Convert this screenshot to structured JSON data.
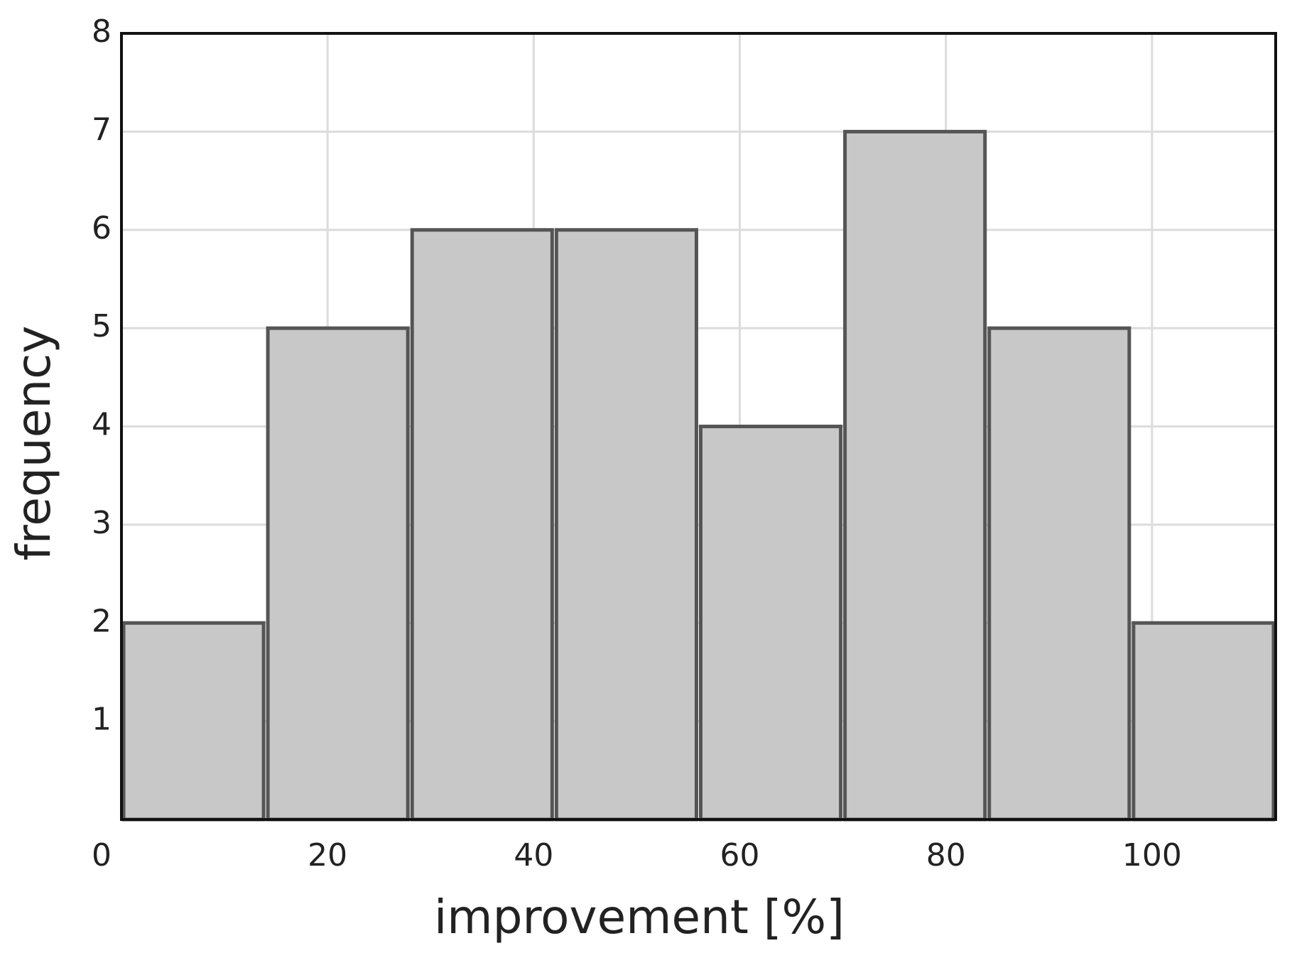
{
  "chart_data": {
    "type": "histogram",
    "x_label": "improvement [%]",
    "y_label": "frequency",
    "bins": [
      0,
      14,
      28,
      42,
      56,
      70,
      84,
      98,
      112
    ],
    "values": [
      2,
      5,
      6,
      6,
      4,
      7,
      5,
      2
    ],
    "color": "#c8c8c8",
    "edge_color": "#555555",
    "xlim": [
      0,
      112
    ],
    "ylim": [
      0,
      8
    ],
    "xticks": [
      0,
      20,
      40,
      60,
      80,
      100
    ],
    "yticks": [
      1,
      2,
      3,
      4,
      5,
      6,
      7,
      8
    ],
    "grid": true
  }
}
